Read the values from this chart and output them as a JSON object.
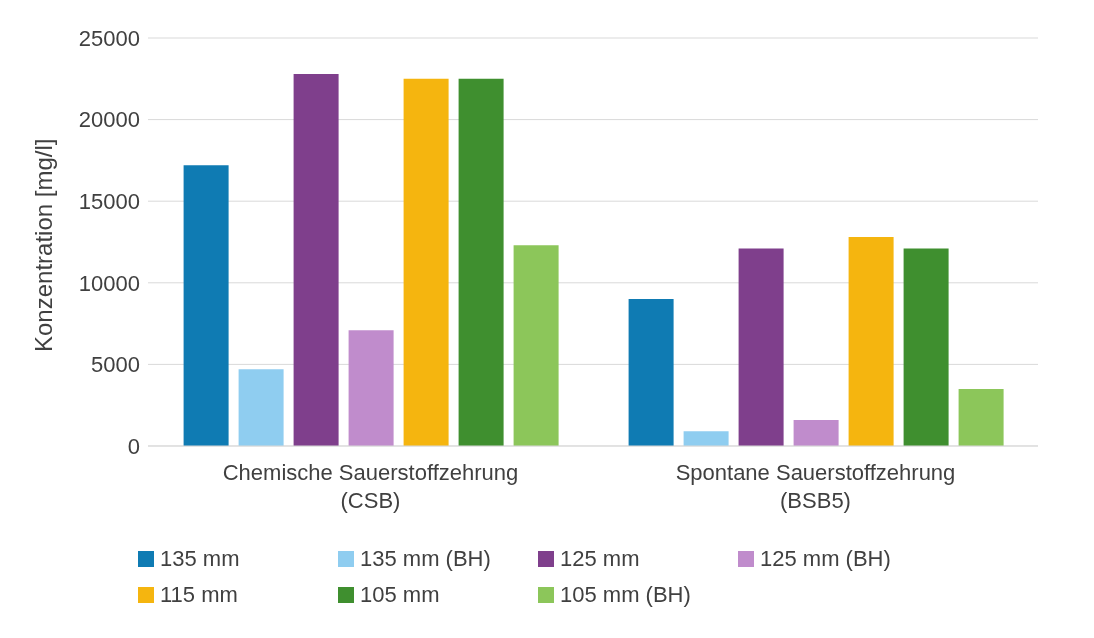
{
  "chart_data": {
    "type": "bar",
    "ylabel": "Konzentration [mg/l]",
    "categories": [
      "Chemische Sauerstoffzehrung (CSB)",
      "Spontane Sauerstoffzehrung (BSB5)"
    ],
    "series": [
      {
        "name": "135 mm",
        "color": "#0f7bb3",
        "values": [
          17200,
          9000
        ]
      },
      {
        "name": "135 mm (BH)",
        "color": "#8fcdf0",
        "values": [
          4700,
          900
        ]
      },
      {
        "name": "125 mm",
        "color": "#7f3f8c",
        "values": [
          22800,
          12100
        ]
      },
      {
        "name": "125 mm (BH)",
        "color": "#c08ccc",
        "values": [
          7100,
          1600
        ]
      },
      {
        "name": "115 mm",
        "color": "#f5b50f",
        "values": [
          22500,
          12800
        ]
      },
      {
        "name": "105 mm",
        "color": "#3f8f2f",
        "values": [
          22500,
          12100
        ]
      },
      {
        "name": "105 mm (BH)",
        "color": "#8cc65a",
        "values": [
          12300,
          3500
        ]
      }
    ],
    "ylim": [
      0,
      25000
    ],
    "yticks": [
      0,
      5000,
      10000,
      15000,
      20000,
      25000
    ],
    "grid": "y",
    "legend": "bottom"
  }
}
